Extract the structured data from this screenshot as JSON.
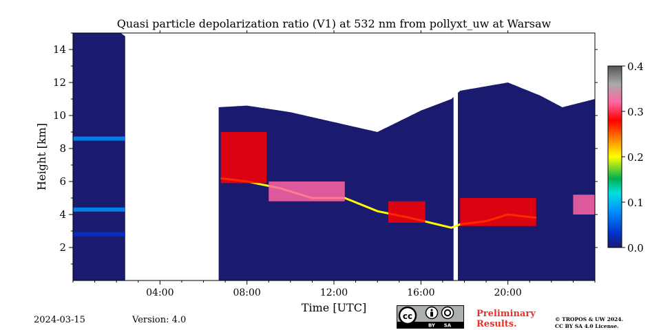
{
  "chart_data": {
    "type": "heatmap",
    "title": "Quasi particle depolarization ratio (V1) at 532 nm from pollyxt_uw at Warsaw",
    "xlabel": "Time [UTC]",
    "ylabel": "Height [km]",
    "xlim": [
      0,
      24
    ],
    "ylim": [
      0,
      15
    ],
    "xticks": [
      "04:00",
      "08:00",
      "12:00",
      "16:00",
      "20:00"
    ],
    "xtick_values": [
      4,
      8,
      12,
      16,
      20
    ],
    "yticks": [
      2,
      4,
      6,
      8,
      10,
      12,
      14
    ],
    "colorbar": {
      "min": 0.0,
      "max": 0.4,
      "ticks": [
        "0.0",
        "0.1",
        "0.2",
        "0.3",
        "0.4"
      ],
      "tick_values": [
        0.0,
        0.1,
        0.2,
        0.3,
        0.4
      ],
      "colormap": [
        "#1a1a6e",
        "#0033cc",
        "#0090ff",
        "#00e0e0",
        "#00b050",
        "#ffff00",
        "#ff8000",
        "#ff0000",
        "#ff66a3",
        "#aaaaaa",
        "#555555"
      ]
    },
    "no_data_intervals_hours": [
      [
        2.4,
        6.7
      ],
      [
        17.5,
        17.7
      ]
    ],
    "signal_top_km": [
      [
        0.0,
        15.0
      ],
      [
        2.2,
        15.0
      ],
      [
        6.7,
        10.5
      ],
      [
        8.0,
        10.6
      ],
      [
        10.0,
        10.2
      ],
      [
        12.0,
        9.6
      ],
      [
        14.0,
        9.0
      ],
      [
        16.0,
        10.3
      ],
      [
        17.4,
        11.0
      ],
      [
        17.8,
        11.5
      ],
      [
        20.0,
        12.0
      ],
      [
        21.5,
        11.2
      ],
      [
        22.5,
        10.5
      ],
      [
        24.0,
        11.0
      ]
    ],
    "aerosol_layer_top_km": [
      [
        6.8,
        6.2
      ],
      [
        8.0,
        6.0
      ],
      [
        9.5,
        5.6
      ],
      [
        11.0,
        5.0
      ],
      [
        12.5,
        5.0
      ],
      [
        14.0,
        4.2
      ],
      [
        15.5,
        3.8
      ],
      [
        17.4,
        3.2
      ],
      [
        17.8,
        3.4
      ],
      [
        19.0,
        3.6
      ],
      [
        20.0,
        4.0
      ],
      [
        21.3,
        3.8
      ]
    ],
    "high_depolarization_features": [
      {
        "time_h": [
          6.8,
          8.9
        ],
        "height_km": [
          5.9,
          9.0
        ],
        "value": 0.3
      },
      {
        "time_h": [
          9.0,
          12.5
        ],
        "height_km": [
          4.8,
          6.0
        ],
        "value": 0.32
      },
      {
        "time_h": [
          14.5,
          16.2
        ],
        "height_km": [
          3.5,
          4.8
        ],
        "value": 0.27
      },
      {
        "time_h": [
          17.8,
          21.3
        ],
        "height_km": [
          3.3,
          5.0
        ],
        "value": 0.3
      },
      {
        "time_h": [
          23.0,
          24.0
        ],
        "height_km": [
          4.0,
          5.2
        ],
        "value": 0.33
      }
    ],
    "low_depolarization_layers": [
      {
        "time_h": [
          0.0,
          2.4
        ],
        "height_km": 8.6,
        "value": 0.07
      },
      {
        "time_h": [
          0.0,
          2.4
        ],
        "height_km": 4.3,
        "value": 0.06
      },
      {
        "time_h": [
          0.0,
          2.4
        ],
        "height_km": 2.8,
        "value": 0.05
      }
    ]
  },
  "footer": {
    "date": "2024-03-15",
    "version": "Version: 4.0",
    "preliminary_line1": "Preliminary",
    "preliminary_line2": "Results.",
    "copyright_line1": "© TROPOS & UW 2024.",
    "copyright_line2": "CC BY SA 4.0 License.",
    "cc_label_by": "BY",
    "cc_label_sa": "SA"
  }
}
